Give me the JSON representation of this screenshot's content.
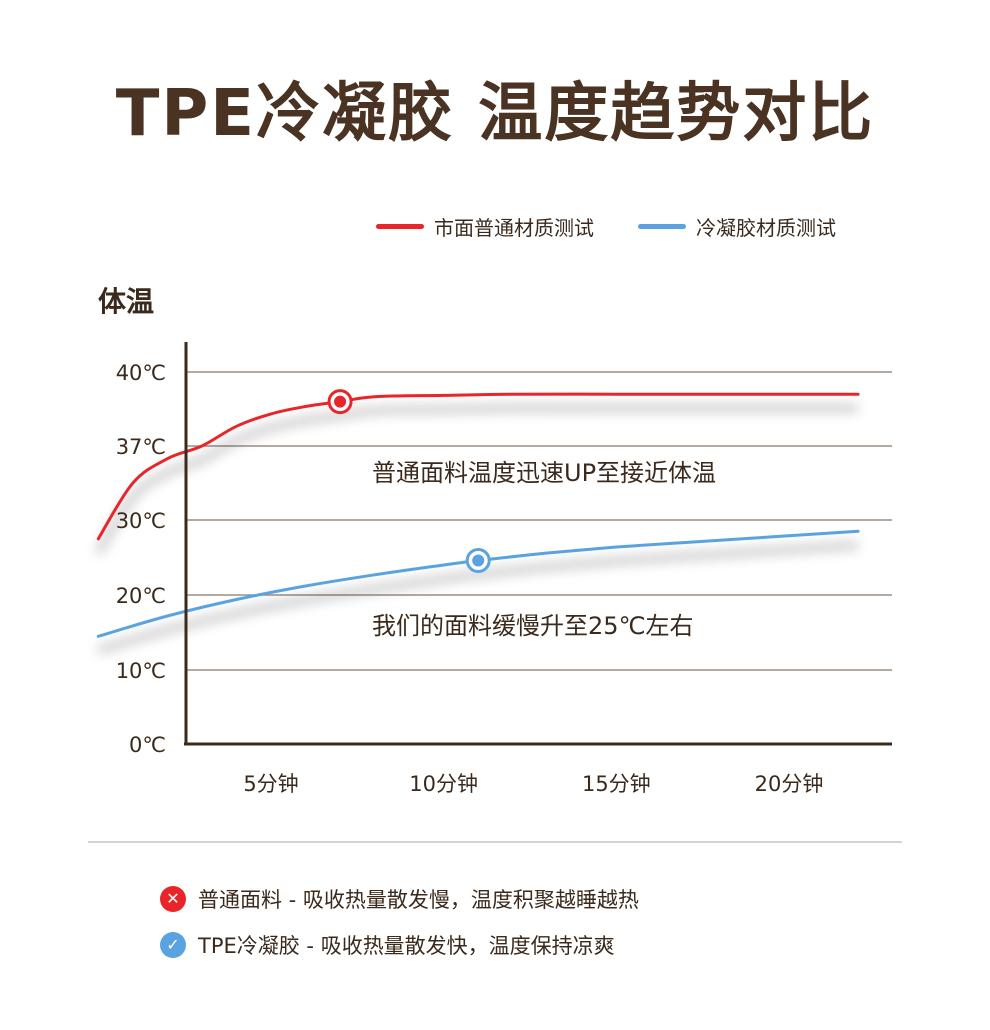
{
  "title": "TPE冷凝胶 温度趋势对比",
  "colors": {
    "red": "#e8262a",
    "blue": "#5ba3e0",
    "axis": "#3b2a1c",
    "grid": "#9a8e86"
  },
  "chart_data": {
    "type": "line",
    "ylabel": "体温",
    "y_ticks": [
      "40℃",
      "37℃",
      "30℃",
      "20℃",
      "10℃",
      "0℃"
    ],
    "x_ticks": [
      "5分钟",
      "10分钟",
      "15分钟",
      "20分钟"
    ],
    "grid": "horizontal",
    "legend_position": "top-right",
    "series": [
      {
        "name": "市面普通材质测试",
        "color": "#e8262a",
        "x": [
          0,
          1,
          2,
          3,
          4,
          5,
          6,
          7,
          8,
          10,
          12,
          15,
          18,
          20,
          22
        ],
        "y": [
          27.5,
          33.5,
          35.8,
          37.0,
          37.8,
          38.3,
          38.6,
          38.8,
          39.0,
          39.05,
          39.1,
          39.1,
          39.1,
          39.1,
          39.1
        ],
        "marker_index": 7
      },
      {
        "name": "冷凝胶材质测试",
        "color": "#5ba3e0",
        "x": [
          0,
          2,
          4,
          6,
          8,
          10,
          11,
          13,
          15,
          17,
          19,
          21,
          22
        ],
        "y": [
          14.5,
          17.2,
          19.4,
          21.2,
          22.7,
          24.0,
          24.6,
          25.6,
          26.4,
          27.0,
          27.6,
          28.2,
          28.5
        ],
        "marker_index": 6
      }
    ],
    "annotations": [
      "普通面料温度迅速UP至接近体温",
      "我们的面料缓慢升至25℃左右"
    ]
  },
  "notes": [
    {
      "icon": "cross-icon",
      "text": "普通面料 - 吸收热量散发慢，温度积聚越睡越热"
    },
    {
      "icon": "check-icon",
      "text": "TPE冷凝胶 - 吸收热量散发快，温度保持凉爽"
    }
  ]
}
